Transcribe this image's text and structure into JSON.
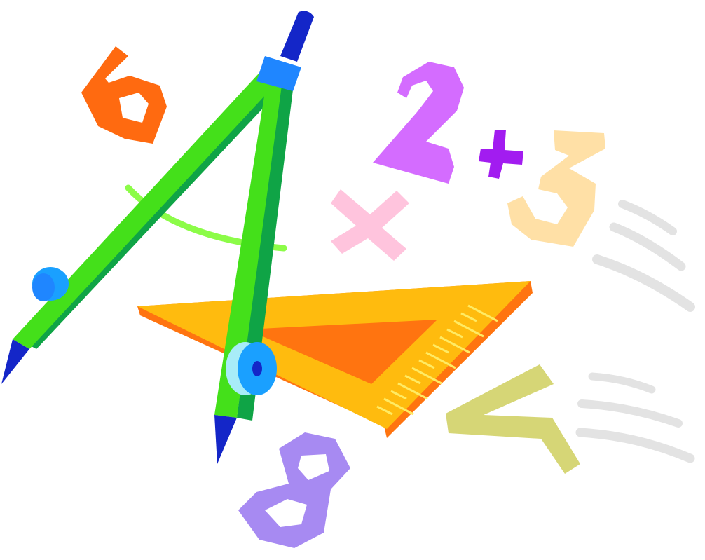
{
  "illustration": {
    "subject": "math-clipart",
    "colors": {
      "background": "#ffffff",
      "six": "#ff6a10",
      "two": "#d46cff",
      "plus": "#a21cf0",
      "three": "#ffe0a6",
      "times": "#ffc4dd",
      "eight": "#a78af2",
      "seven": "#d6d676",
      "speed_lines": "#e3e3e3",
      "compass_leg_light": "#44e01a",
      "compass_leg_dark": "#0fa446",
      "compass_head": "#1f86ff",
      "compass_pencil": "#1426c8",
      "compass_arc": "#8cfc48",
      "compass_screw": "#1aa0ff",
      "compass_screw_light": "#a8ecf8",
      "set_square_top": "#ffbb0e",
      "set_square_edge": "#ff7410",
      "ruler_marks": "#ffeb64"
    }
  }
}
